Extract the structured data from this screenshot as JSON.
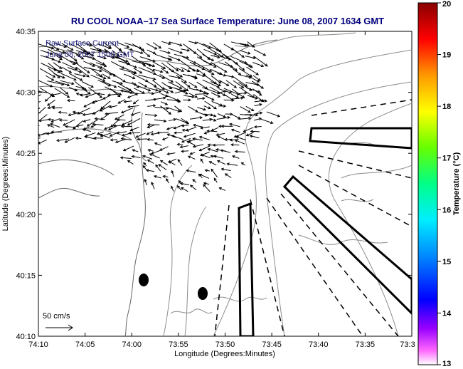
{
  "map": {
    "title": "RU COOL  NOAA–17  Sea Surface Temperature:  June 08, 2007 1634 GMT",
    "overlay_line1": "Raw Surface Current",
    "overlay_line2": "June 08, 2007 1500 GMT",
    "xlabel": "Longitude (Degrees:Minutes)",
    "ylabel": "Latitude (Degrees:Minutes)",
    "x_ticks": [
      "74:10",
      "74:05",
      "74:00",
      "73:55",
      "73:50",
      "73:45",
      "73:40",
      "73:35",
      "73:3"
    ],
    "y_ticks": [
      "40:35",
      "40:30",
      "40:25",
      "40:20",
      "40:15",
      "40:10"
    ],
    "scale_label": "50 cm/s",
    "colors": {
      "title": "#00007f",
      "overlay": "#1a1a7a",
      "axis": "#000000",
      "contour": "#8c8c8c",
      "vector": "#000000"
    }
  },
  "colorbar": {
    "label": "Temperature (°C)",
    "ticks": [
      "20",
      "19",
      "18",
      "17",
      "16",
      "15",
      "14",
      "13"
    ],
    "range": [
      13,
      20
    ],
    "colormap": "jet-like (magenta at 13 → blue → cyan → green → yellow → red → dark red at 20)"
  }
}
